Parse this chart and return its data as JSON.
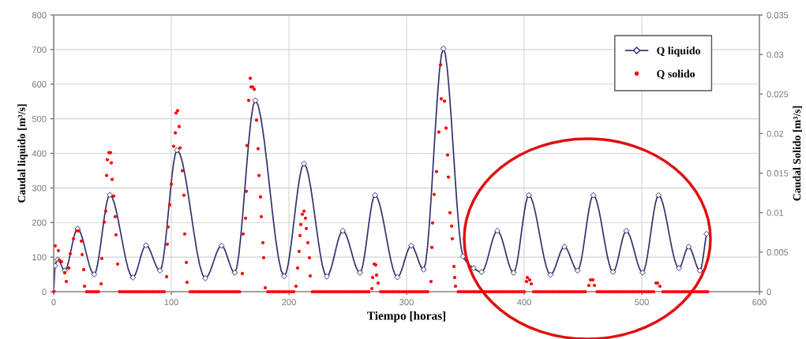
{
  "chart_data": {
    "type": "line",
    "xlabel": "Tiempo [horas]",
    "ylabel": "Caudal liquido [m³/s]",
    "y2label": "Caudal Solido [m³/s]",
    "xlim": [
      0,
      600
    ],
    "xticks": [
      0,
      100,
      200,
      300,
      400,
      500,
      600
    ],
    "ylim": [
      0,
      800
    ],
    "yticks": [
      0,
      100,
      200,
      300,
      400,
      500,
      600,
      700,
      800
    ],
    "y2lim": [
      0,
      0.035
    ],
    "y2ticks": [
      0,
      0.005,
      0.01,
      0.015,
      0.02,
      0.025,
      0.03,
      0.035
    ],
    "grid": true,
    "legend": "top right",
    "series": [
      {
        "name": "Q liquido",
        "color": "#2e2e6e",
        "marker": "diamond",
        "line_style": "solid",
        "x": [
          0,
          1.3,
          3.4,
          9.4,
          20.3,
          34.4,
          47.7,
          67.3,
          78.5,
          90.4,
          104.9,
          128.9,
          142.7,
          153.9,
          171.4,
          196.0,
          212.8,
          232.2,
          245.8,
          260.4,
          273.2,
          292.2,
          304.0,
          314.5,
          331.3,
          348.0,
          357.0,
          363.8,
          377.2,
          391.0,
          404.0,
          422.4,
          434.2,
          445.4,
          458.8,
          475.6,
          486.8,
          500.7,
          514.3,
          531.5,
          539.8,
          549.4,
          555.0
        ],
        "values": [
          0,
          75,
          93,
          61,
          182,
          50,
          280,
          41,
          134,
          61,
          409,
          39,
          133,
          55,
          553,
          45,
          370,
          44,
          176,
          55,
          279,
          42,
          133,
          64,
          703,
          102,
          68,
          57,
          176,
          55,
          279,
          49,
          130,
          61,
          279,
          57,
          176,
          55,
          279,
          68,
          130,
          61,
          167
        ]
      },
      {
        "name": "Q solido",
        "type": "scatter",
        "axis": "y2",
        "color": "#ff0000",
        "marker": "circle",
        "x": [
          0,
          1.3,
          4.0,
          4.7,
          6.7,
          9.4,
          10.7,
          12.8,
          14.1,
          16.8,
          19.5,
          21.5,
          23.5,
          24.2,
          25.5,
          26.2,
          28,
          30,
          32,
          34,
          36,
          38,
          40.3,
          40.9,
          43.0,
          44.3,
          45.0,
          45.6,
          47.0,
          48.3,
          49.0,
          49.7,
          51.0,
          52.3,
          53.0,
          54.4,
          56,
          58,
          60,
          62,
          64,
          66,
          68,
          70,
          72,
          74,
          76,
          78,
          80,
          82,
          84,
          86,
          88,
          90,
          92,
          94,
          96.0,
          96.6,
          97.3,
          98.7,
          100.0,
          102.0,
          103.4,
          104.0,
          105.4,
          106.7,
          107.4,
          109.4,
          110.7,
          111.4,
          112.8,
          113.4,
          116,
          118,
          120,
          122,
          124,
          126,
          128,
          130,
          132,
          134,
          136,
          138,
          140,
          142,
          144,
          146,
          148,
          150,
          152,
          154,
          156,
          158,
          160.4,
          161.1,
          163.1,
          163.8,
          164.4,
          165.8,
          167.1,
          167.8,
          169.1,
          170.5,
          172.5,
          173.8,
          174.5,
          175.8,
          176.5,
          177.9,
          178.5,
          179.9,
          182,
          184,
          186,
          188,
          190,
          192,
          194,
          196,
          198,
          200,
          202,
          204,
          206.0,
          207.4,
          208.7,
          209.4,
          210.1,
          211.4,
          212.8,
          214.1,
          214.8,
          216.1,
          217.4,
          218.1,
          220,
          222,
          224,
          226,
          228,
          230,
          232,
          234,
          236,
          238,
          240,
          242,
          244,
          246,
          248,
          250,
          252,
          254,
          256,
          258,
          260,
          262,
          264,
          266,
          268,
          270.5,
          271.1,
          272.5,
          273.8,
          274.5,
          275.8,
          278,
          280,
          282,
          284,
          286,
          288,
          290,
          292,
          294,
          296,
          298,
          300,
          302,
          304,
          306,
          308,
          310,
          312,
          314,
          316,
          318,
          320.8,
          321.5,
          322.1,
          323.5,
          325.5,
          327.5,
          328.9,
          329.5,
          332.2,
          333.6,
          334.9,
          335.6,
          336.9,
          338.3,
          338.9,
          340.3,
          340.9,
          341.6,
          344,
          346,
          348,
          350,
          352,
          354,
          356,
          358,
          360,
          362,
          364,
          366,
          368,
          370,
          372,
          374,
          376,
          378,
          380,
          382,
          384,
          386,
          388,
          390,
          392,
          394,
          396,
          398,
          400,
          402.0,
          402.7,
          404.7,
          406.0,
          408,
          410,
          412,
          414,
          416,
          418,
          420,
          422,
          424,
          426,
          428,
          430,
          432,
          434,
          436,
          438,
          440,
          442,
          444,
          446,
          448,
          450,
          452,
          455.0,
          456.4,
          458.4,
          459.7,
          462,
          464,
          466,
          468,
          470,
          472,
          474,
          476,
          478,
          480,
          482,
          484,
          486,
          488,
          490,
          492,
          494,
          496,
          498,
          500,
          502,
          504,
          506,
          508,
          510,
          512.1,
          513.4,
          515.4,
          518,
          520,
          522,
          524,
          526,
          528,
          530,
          532,
          534,
          536,
          538,
          540,
          542,
          544,
          546,
          548,
          550,
          552,
          554,
          556
        ],
        "values": [
          0,
          0.0058,
          0.0052,
          0.004,
          0.0038,
          0.0024,
          0.0013,
          0.003,
          0.0048,
          0.0067,
          0.0077,
          0.0077,
          0.0064,
          0.0047,
          0.0028,
          0.0007,
          0,
          0,
          0,
          0,
          0,
          0,
          0.001,
          0.0042,
          0.0088,
          0.0102,
          0.0147,
          0.0167,
          0.0176,
          0.0176,
          0.0163,
          0.0142,
          0.0121,
          0.0095,
          0.0072,
          0.0035,
          0,
          0,
          0,
          0,
          0,
          0,
          0,
          0,
          0,
          0,
          0,
          0,
          0,
          0,
          0,
          0,
          0,
          0,
          0,
          0,
          0.0019,
          0.006,
          0.0082,
          0.011,
          0.0136,
          0.0184,
          0.0201,
          0.0226,
          0.0229,
          0.0209,
          0.0182,
          0.0153,
          0.0122,
          0.0073,
          0.0037,
          0.0012,
          0,
          0,
          0,
          0,
          0,
          0,
          0,
          0,
          0,
          0,
          0,
          0,
          0,
          0,
          0,
          0,
          0,
          0,
          0,
          0,
          0,
          0,
          0.0023,
          0.0073,
          0.0093,
          0.0127,
          0.0185,
          0.0242,
          0.027,
          0.0259,
          0.0259,
          0.0256,
          0.0217,
          0.0181,
          0.0147,
          0.012,
          0.0095,
          0.0062,
          0.0043,
          0.0005,
          0,
          0,
          0,
          0,
          0,
          0,
          0,
          0,
          0,
          0,
          0,
          0,
          0.0007,
          0.003,
          0.0051,
          0.0071,
          0.0085,
          0.0098,
          0.0102,
          0.0093,
          0.008,
          0.0062,
          0.0043,
          0.002,
          0,
          0,
          0,
          0,
          0,
          0,
          0,
          0,
          0,
          0,
          0,
          0,
          0,
          0,
          0,
          0,
          0,
          0,
          0,
          0,
          0,
          0,
          0,
          0,
          0,
          0.0004,
          0.0018,
          0.0035,
          0.0034,
          0.0021,
          0.0011,
          0,
          0,
          0,
          0,
          0,
          0,
          0,
          0,
          0,
          0,
          0,
          0,
          0,
          0,
          0,
          0,
          0,
          0,
          0,
          0,
          0,
          0.0013,
          0.0056,
          0.0087,
          0.0123,
          0.0152,
          0.0202,
          0.0287,
          0.0244,
          0.0241,
          0.0207,
          0.0173,
          0.0145,
          0.01,
          0.0083,
          0.0067,
          0.0032,
          0.0018,
          0.0007,
          0,
          0,
          0,
          0,
          0,
          0,
          0,
          0,
          0,
          0,
          0,
          0,
          0,
          0,
          0,
          0,
          0,
          0,
          0,
          0,
          0,
          0,
          0,
          0,
          0,
          0,
          0,
          0,
          0,
          0.0013,
          0.0018,
          0.0015,
          0.001,
          0,
          0,
          0,
          0,
          0,
          0,
          0,
          0,
          0,
          0,
          0,
          0,
          0,
          0,
          0,
          0,
          0,
          0,
          0,
          0,
          0,
          0,
          0,
          0.0008,
          0.0015,
          0.0015,
          0.0008,
          0,
          0,
          0,
          0,
          0,
          0,
          0,
          0,
          0,
          0,
          0,
          0,
          0,
          0,
          0,
          0,
          0,
          0,
          0,
          0,
          0,
          0,
          0,
          0,
          0,
          0.0011,
          0.0011,
          0.0007,
          0,
          0,
          0,
          0,
          0,
          0,
          0,
          0,
          0,
          0,
          0,
          0,
          0,
          0,
          0,
          0,
          0,
          0,
          0,
          0
        ]
      }
    ]
  }
}
